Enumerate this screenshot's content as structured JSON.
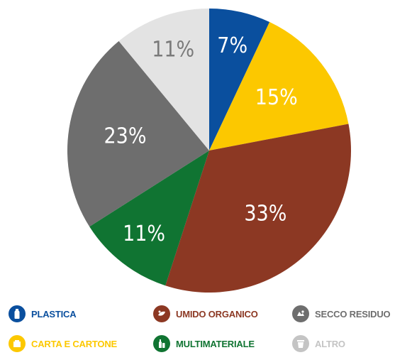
{
  "chart_data": {
    "type": "pie",
    "title": "",
    "start_angle_deg": 0,
    "direction": "clockwise",
    "slices": [
      {
        "name": "PLASTICA",
        "value": 7,
        "label": "7%",
        "color": "#0a4f9e",
        "label_color": "#ffffff",
        "icon": "plastic-bottle-icon"
      },
      {
        "name": "CARTA E CARTONE",
        "value": 15,
        "label": "15%",
        "color": "#fcc800",
        "label_color": "#ffffff",
        "icon": "paper-box-icon"
      },
      {
        "name": "UMIDO ORGANICO",
        "value": 33,
        "label": "33%",
        "color": "#8c3823",
        "label_color": "#ffffff",
        "icon": "food-waste-icon"
      },
      {
        "name": "MULTIMATERIALE",
        "value": 11,
        "label": "11%",
        "color": "#107432",
        "label_color": "#ffffff",
        "icon": "glass-can-icon"
      },
      {
        "name": "SECCO RESIDUO",
        "value": 23,
        "label": "23%",
        "color": "#6e6e6e",
        "label_color": "#ffffff",
        "icon": "residual-waste-icon"
      },
      {
        "name": "ALTRO",
        "value": 11,
        "label": "11%",
        "color": "#e3e3e3",
        "label_color": "#7a7a7a",
        "icon": "bin-icon"
      }
    ],
    "legend": {
      "placement": "bottom",
      "rows": [
        [
          "PLASTICA",
          "UMIDO ORGANICO",
          "SECCO RESIDUO"
        ],
        [
          "CARTA E CARTONE",
          "MULTIMATERIALE",
          "ALTRO"
        ]
      ]
    }
  },
  "legend_text_colors": {
    "PLASTICA": "#0a4f9e",
    "CARTA E CARTONE": "#fcc800",
    "UMIDO ORGANICO": "#8c3823",
    "MULTIMATERIALE": "#107432",
    "SECCO RESIDUO": "#6e6e6e",
    "ALTRO": "#c4c4c4"
  },
  "legend_icon_colors": {
    "PLASTICA": "#0a4f9e",
    "CARTA E CARTONE": "#fcc800",
    "UMIDO ORGANICO": "#8c3823",
    "MULTIMATERIALE": "#107432",
    "SECCO RESIDUO": "#6e6e6e",
    "ALTRO": "#c4c4c4"
  }
}
